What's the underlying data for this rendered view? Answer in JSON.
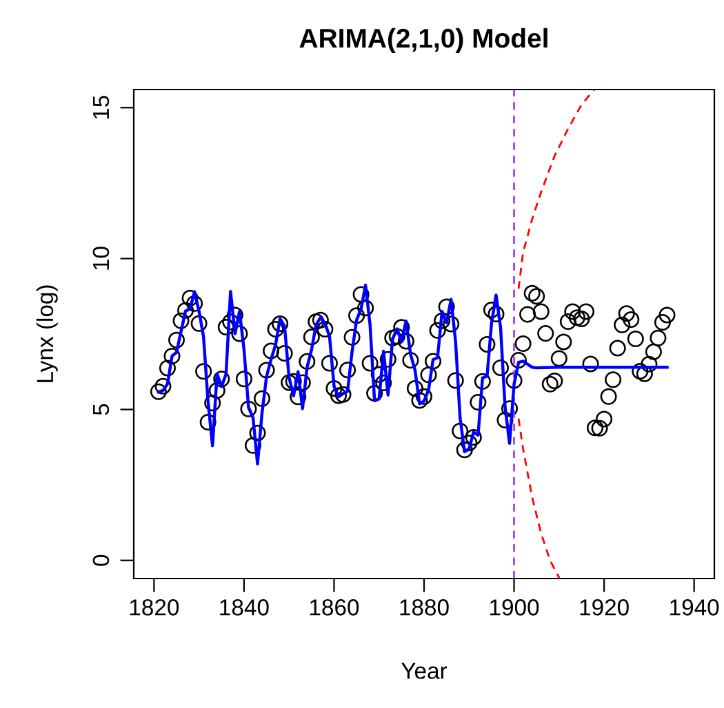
{
  "chart_data": {
    "type": "scatter",
    "title": "ARIMA(2,1,0) Model",
    "xlabel": "Year",
    "ylabel": "Lynx (log)",
    "xlim": [
      1815.5,
      1944.5
    ],
    "ylim": [
      -0.6,
      15.6
    ],
    "xticks": [
      1820,
      1840,
      1860,
      1880,
      1900,
      1920,
      1940
    ],
    "yticks": [
      0,
      5,
      10,
      15
    ],
    "grid": false,
    "ref_lines": [
      {
        "axis": "x",
        "value": 1900,
        "color": "#a040ff",
        "line_style": "dashed"
      }
    ],
    "series": [
      {
        "marker": "circle",
        "color": "#000000",
        "x": [
          1821,
          1822,
          1823,
          1824,
          1825,
          1826,
          1827,
          1828,
          1829,
          1830,
          1831,
          1832,
          1833,
          1834,
          1835,
          1836,
          1837,
          1838,
          1839,
          1840,
          1841,
          1842,
          1843,
          1844,
          1845,
          1846,
          1847,
          1848,
          1849,
          1850,
          1851,
          1852,
          1853,
          1854,
          1855,
          1856,
          1857,
          1858,
          1859,
          1860,
          1861,
          1862,
          1863,
          1864,
          1865,
          1866,
          1867,
          1868,
          1869,
          1870,
          1871,
          1872,
          1873,
          1874,
          1875,
          1876,
          1877,
          1878,
          1879,
          1880,
          1881,
          1882,
          1883,
          1884,
          1885,
          1886,
          1887,
          1888,
          1889,
          1890,
          1891,
          1892,
          1893,
          1894,
          1895,
          1896,
          1897,
          1898,
          1899,
          1900,
          1901,
          1902,
          1903,
          1904,
          1905,
          1906,
          1907,
          1908,
          1909,
          1910,
          1911,
          1912,
          1913,
          1914,
          1915,
          1916,
          1917,
          1918,
          1919,
          1920,
          1921,
          1922,
          1923,
          1924,
          1925,
          1926,
          1927,
          1928,
          1929,
          1930,
          1931,
          1932,
          1933,
          1934
        ],
        "values": [
          5.59,
          5.77,
          6.37,
          6.77,
          7.3,
          7.94,
          8.28,
          8.69,
          8.51,
          7.85,
          6.26,
          4.58,
          5.21,
          5.63,
          6.01,
          7.73,
          7.9,
          8.13,
          7.51,
          6.01,
          5.02,
          3.81,
          4.22,
          5.36,
          6.3,
          6.94,
          7.66,
          7.84,
          6.86,
          5.89,
          5.93,
          5.42,
          5.89,
          6.59,
          7.4,
          7.91,
          7.96,
          7.66,
          6.53,
          5.7,
          5.46,
          5.5,
          6.31,
          7.39,
          8.11,
          8.81,
          8.36,
          6.53,
          5.54,
          6.16,
          5.88,
          6.66,
          7.37,
          7.42,
          7.72,
          7.26,
          6.63,
          5.7,
          5.3,
          5.43,
          6.15,
          6.6,
          7.62,
          7.94,
          8.4,
          7.83,
          5.96,
          4.29,
          3.66,
          3.89,
          4.08,
          5.24,
          5.93,
          7.16,
          8.3,
          8.16,
          6.38,
          4.65,
          5.03,
          5.96,
          6.63,
          7.18,
          8.15,
          8.85,
          8.75,
          8.24,
          7.52,
          5.84,
          5.95,
          6.69,
          7.24,
          7.91,
          8.24,
          8.04,
          8.0,
          8.24,
          6.51,
          4.39,
          4.38,
          4.68,
          5.43,
          5.99,
          7.03,
          7.8,
          8.18,
          7.98,
          7.34,
          6.27,
          6.18,
          6.5,
          6.91,
          7.37,
          7.89,
          8.13
        ]
      },
      {
        "type": "line",
        "marker": "none",
        "line_style": "solid",
        "color": "#0000ff",
        "x": [
          1821,
          1822,
          1823,
          1824,
          1825,
          1826,
          1827,
          1828,
          1829,
          1830,
          1831,
          1832,
          1833,
          1834,
          1835,
          1836,
          1837,
          1838,
          1839,
          1840,
          1841,
          1842,
          1843,
          1844,
          1845,
          1846,
          1847,
          1848,
          1849,
          1850,
          1851,
          1852,
          1853,
          1854,
          1855,
          1856,
          1857,
          1858,
          1859,
          1860,
          1861,
          1862,
          1863,
          1864,
          1865,
          1866,
          1867,
          1868,
          1869,
          1870,
          1871,
          1872,
          1873,
          1874,
          1875,
          1876,
          1877,
          1878,
          1879,
          1880,
          1881,
          1882,
          1883,
          1884,
          1885,
          1886,
          1887,
          1888,
          1889,
          1890,
          1891,
          1892,
          1893,
          1894,
          1895,
          1896,
          1897,
          1898,
          1899,
          1900,
          1901,
          1902,
          1904,
          1905,
          1910,
          1920,
          1934
        ],
        "values": [
          5.58,
          5.63,
          5.85,
          6.77,
          6.89,
          7.58,
          8.26,
          8.34,
          8.9,
          8.26,
          7.41,
          5.27,
          3.8,
          6.18,
          5.76,
          6.17,
          8.91,
          7.51,
          8.25,
          6.98,
          5.07,
          4.73,
          3.2,
          4.89,
          6.09,
          6.66,
          7.14,
          8.01,
          7.76,
          6.07,
          5.45,
          6.25,
          5.03,
          6.39,
          6.98,
          7.8,
          8.05,
          7.85,
          7.42,
          5.77,
          5.42,
          5.53,
          5.6,
          6.91,
          7.96,
          8.33,
          9.12,
          7.81,
          5.29,
          5.35,
          6.93,
          5.48,
          7.33,
          7.67,
          7.25,
          7.93,
          6.83,
          6.3,
          5.19,
          5.28,
          5.65,
          6.65,
          6.72,
          8.25,
          7.87,
          8.65,
          7.26,
          4.73,
          3.6,
          3.69,
          4.25,
          4.15,
          6.05,
          6.1,
          7.87,
          8.79,
          7.72,
          5.09,
          3.88,
          5.84,
          6.56,
          6.6,
          6.4,
          6.38,
          6.4,
          6.4,
          6.4
        ]
      },
      {
        "type": "line",
        "marker": "none",
        "line_style": "dashed",
        "color": "#ff0000",
        "x": [
          1901,
          1902,
          1904,
          1906,
          1909,
          1912,
          1915,
          1917.8
        ],
        "values": [
          9.0,
          10.2,
          11.3,
          12.2,
          13.4,
          14.3,
          15.1,
          15.6
        ]
      },
      {
        "type": "line",
        "marker": "none",
        "line_style": "dashed",
        "color": "#ff0000",
        "x": [
          1901,
          1902,
          1904,
          1906,
          1908,
          1910.1
        ],
        "values": [
          4.7,
          3.7,
          2.1,
          0.9,
          0,
          -0.6
        ]
      }
    ]
  }
}
